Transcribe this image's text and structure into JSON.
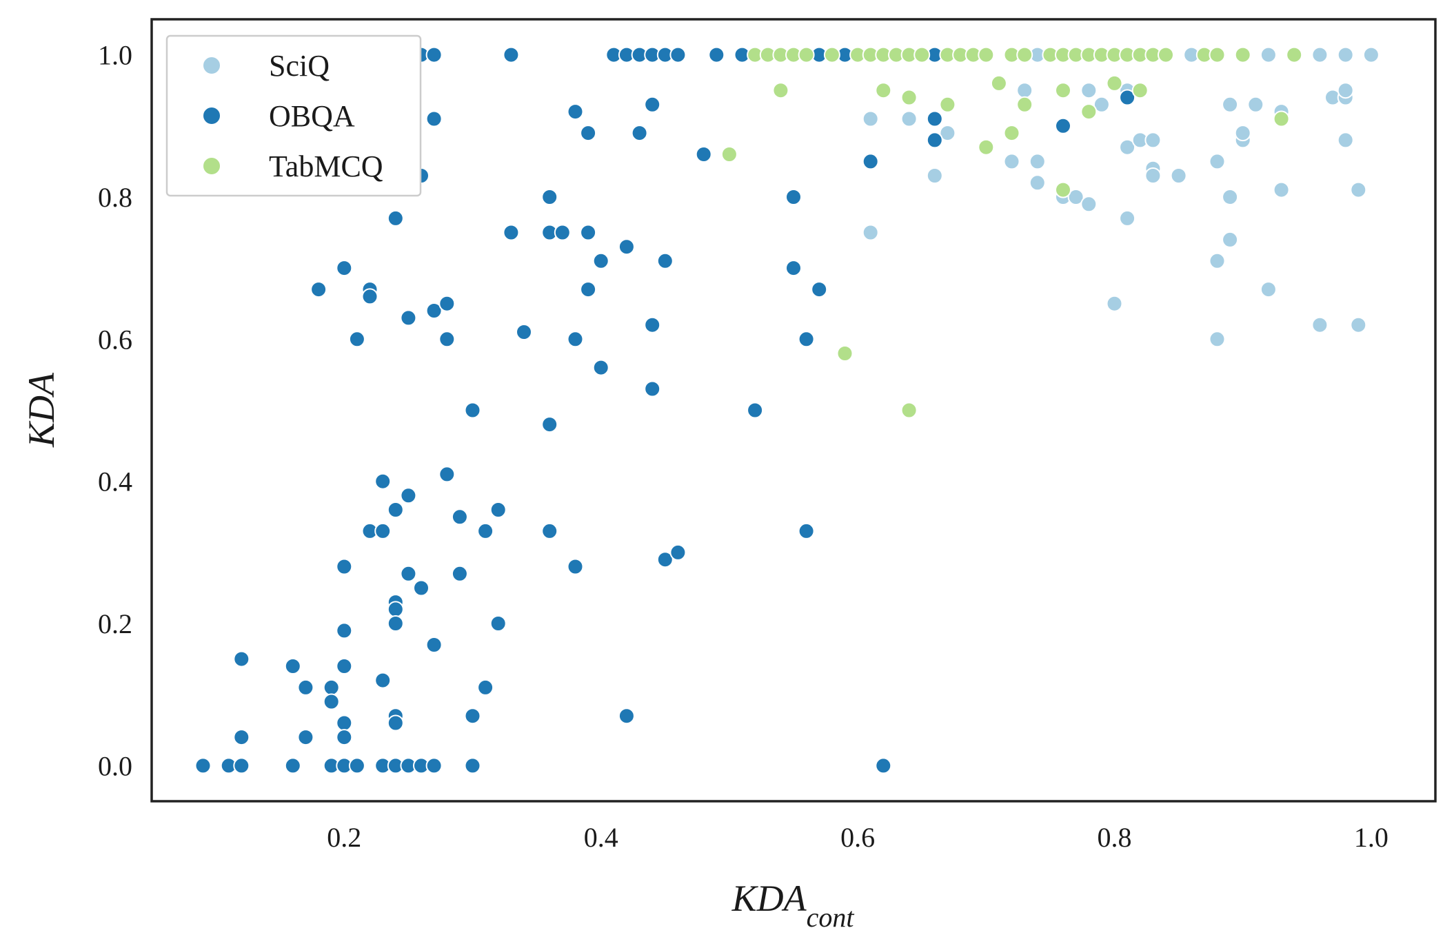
{
  "colors": {
    "sciq": "#a6cee3",
    "obqa": "#1f78b4",
    "tabmcq": "#b2df8a",
    "frame": "#222222",
    "marker_edge": "#ffffff"
  },
  "chart_data": {
    "type": "scatter",
    "title": "",
    "xlabel_main": "KDA",
    "xlabel_sub": "cont",
    "ylabel": "KDA",
    "xlim": [
      0.05,
      1.05
    ],
    "ylim": [
      -0.05,
      1.05
    ],
    "x_ticks": [
      0.2,
      0.4,
      0.6,
      0.8,
      1.0
    ],
    "x_tick_labels": [
      "0.2",
      "0.4",
      "0.6",
      "0.8",
      "1.0"
    ],
    "y_ticks": [
      0.0,
      0.2,
      0.4,
      0.6,
      0.8,
      1.0
    ],
    "y_tick_labels": [
      "0.0",
      "0.2",
      "0.4",
      "0.6",
      "0.8",
      "1.0"
    ],
    "grid": false,
    "legend_position": "top-left",
    "series": [
      {
        "name": "SciQ",
        "color_key": "sciq",
        "points": [
          [
            0.52,
            1.0
          ],
          [
            0.54,
            1.0
          ],
          [
            0.56,
            1.0
          ],
          [
            0.58,
            1.0
          ],
          [
            0.6,
            1.0
          ],
          [
            0.62,
            1.0
          ],
          [
            0.64,
            1.0
          ],
          [
            0.66,
            1.0
          ],
          [
            0.68,
            1.0
          ],
          [
            0.7,
            1.0
          ],
          [
            0.72,
            1.0
          ],
          [
            0.74,
            1.0
          ],
          [
            0.76,
            1.0
          ],
          [
            0.78,
            1.0
          ],
          [
            0.8,
            1.0
          ],
          [
            0.82,
            1.0
          ],
          [
            0.84,
            1.0
          ],
          [
            0.86,
            1.0
          ],
          [
            0.88,
            1.0
          ],
          [
            0.9,
            1.0
          ],
          [
            0.92,
            1.0
          ],
          [
            0.94,
            1.0
          ],
          [
            0.96,
            1.0
          ],
          [
            0.98,
            1.0
          ],
          [
            1.0,
            1.0
          ],
          [
            0.61,
            0.91
          ],
          [
            0.61,
            0.75
          ],
          [
            0.64,
            0.91
          ],
          [
            0.66,
            0.83
          ],
          [
            0.67,
            0.89
          ],
          [
            0.72,
            0.85
          ],
          [
            0.73,
            0.95
          ],
          [
            0.74,
            0.85
          ],
          [
            0.74,
            0.82
          ],
          [
            0.76,
            0.8
          ],
          [
            0.77,
            0.8
          ],
          [
            0.78,
            0.79
          ],
          [
            0.78,
            0.95
          ],
          [
            0.79,
            0.93
          ],
          [
            0.8,
            0.65
          ],
          [
            0.81,
            0.95
          ],
          [
            0.81,
            0.87
          ],
          [
            0.81,
            0.77
          ],
          [
            0.82,
            0.88
          ],
          [
            0.83,
            0.88
          ],
          [
            0.83,
            0.84
          ],
          [
            0.83,
            0.83
          ],
          [
            0.85,
            0.83
          ],
          [
            0.88,
            0.85
          ],
          [
            0.88,
            0.71
          ],
          [
            0.88,
            0.6
          ],
          [
            0.89,
            0.93
          ],
          [
            0.89,
            0.8
          ],
          [
            0.89,
            0.74
          ],
          [
            0.9,
            0.88
          ],
          [
            0.9,
            0.89
          ],
          [
            0.91,
            0.93
          ],
          [
            0.92,
            0.67
          ],
          [
            0.93,
            0.92
          ],
          [
            0.93,
            0.81
          ],
          [
            0.96,
            0.62
          ],
          [
            0.97,
            0.94
          ],
          [
            0.98,
            0.94
          ],
          [
            0.98,
            0.95
          ],
          [
            0.98,
            0.88
          ],
          [
            0.99,
            0.81
          ],
          [
            0.99,
            0.62
          ]
        ]
      },
      {
        "name": "OBQA",
        "color_key": "obqa",
        "points": [
          [
            0.09,
            0.0
          ],
          [
            0.11,
            0.0
          ],
          [
            0.12,
            0.0
          ],
          [
            0.16,
            0.0
          ],
          [
            0.19,
            0.0
          ],
          [
            0.2,
            0.0
          ],
          [
            0.21,
            0.0
          ],
          [
            0.23,
            0.0
          ],
          [
            0.24,
            0.0
          ],
          [
            0.25,
            0.0
          ],
          [
            0.26,
            0.0
          ],
          [
            0.27,
            0.0
          ],
          [
            0.3,
            0.0
          ],
          [
            0.62,
            0.0
          ],
          [
            0.12,
            0.04
          ],
          [
            0.12,
            0.15
          ],
          [
            0.16,
            0.14
          ],
          [
            0.17,
            0.11
          ],
          [
            0.17,
            0.04
          ],
          [
            0.19,
            0.11
          ],
          [
            0.19,
            0.09
          ],
          [
            0.2,
            0.14
          ],
          [
            0.2,
            0.19
          ],
          [
            0.2,
            0.06
          ],
          [
            0.2,
            0.04
          ],
          [
            0.2,
            0.28
          ],
          [
            0.22,
            0.33
          ],
          [
            0.23,
            0.33
          ],
          [
            0.23,
            0.4
          ],
          [
            0.23,
            0.12
          ],
          [
            0.24,
            0.36
          ],
          [
            0.24,
            0.23
          ],
          [
            0.24,
            0.22
          ],
          [
            0.24,
            0.2
          ],
          [
            0.24,
            0.07
          ],
          [
            0.24,
            0.06
          ],
          [
            0.25,
            0.38
          ],
          [
            0.25,
            0.27
          ],
          [
            0.26,
            0.25
          ],
          [
            0.27,
            0.17
          ],
          [
            0.28,
            0.41
          ],
          [
            0.29,
            0.35
          ],
          [
            0.29,
            0.27
          ],
          [
            0.3,
            0.07
          ],
          [
            0.31,
            0.33
          ],
          [
            0.31,
            0.11
          ],
          [
            0.32,
            0.36
          ],
          [
            0.32,
            0.2
          ],
          [
            0.36,
            0.33
          ],
          [
            0.38,
            0.28
          ],
          [
            0.42,
            0.07
          ],
          [
            0.45,
            0.29
          ],
          [
            0.46,
            0.3
          ],
          [
            0.56,
            0.33
          ],
          [
            0.18,
            0.67
          ],
          [
            0.2,
            0.7
          ],
          [
            0.21,
            0.6
          ],
          [
            0.22,
            0.67
          ],
          [
            0.22,
            0.66
          ],
          [
            0.25,
            0.63
          ],
          [
            0.27,
            0.64
          ],
          [
            0.28,
            0.65
          ],
          [
            0.28,
            0.6
          ],
          [
            0.3,
            0.5
          ],
          [
            0.34,
            0.61
          ],
          [
            0.36,
            0.48
          ],
          [
            0.38,
            0.6
          ],
          [
            0.39,
            0.67
          ],
          [
            0.4,
            0.56
          ],
          [
            0.44,
            0.62
          ],
          [
            0.44,
            0.53
          ],
          [
            0.52,
            0.5
          ],
          [
            0.55,
            0.7
          ],
          [
            0.56,
            0.6
          ],
          [
            0.57,
            0.67
          ],
          [
            0.24,
            0.77
          ],
          [
            0.26,
            0.83
          ],
          [
            0.27,
            0.91
          ],
          [
            0.33,
            0.75
          ],
          [
            0.36,
            0.8
          ],
          [
            0.36,
            0.75
          ],
          [
            0.37,
            0.75
          ],
          [
            0.38,
            0.92
          ],
          [
            0.39,
            0.89
          ],
          [
            0.39,
            0.75
          ],
          [
            0.4,
            0.71
          ],
          [
            0.42,
            0.73
          ],
          [
            0.43,
            0.89
          ],
          [
            0.44,
            0.93
          ],
          [
            0.45,
            0.71
          ],
          [
            0.48,
            0.86
          ],
          [
            0.55,
            0.8
          ],
          [
            0.61,
            0.85
          ],
          [
            0.66,
            0.91
          ],
          [
            0.66,
            0.88
          ],
          [
            0.76,
            0.9
          ],
          [
            0.81,
            0.94
          ],
          [
            0.26,
            1.0
          ],
          [
            0.27,
            1.0
          ],
          [
            0.33,
            1.0
          ],
          [
            0.41,
            1.0
          ],
          [
            0.42,
            1.0
          ],
          [
            0.43,
            1.0
          ],
          [
            0.44,
            1.0
          ],
          [
            0.45,
            1.0
          ],
          [
            0.46,
            1.0
          ],
          [
            0.49,
            1.0
          ],
          [
            0.51,
            1.0
          ],
          [
            0.53,
            1.0
          ],
          [
            0.57,
            1.0
          ],
          [
            0.59,
            1.0
          ],
          [
            0.66,
            1.0
          ]
        ]
      },
      {
        "name": "TabMCQ",
        "color_key": "tabmcq",
        "points": [
          [
            0.52,
            1.0
          ],
          [
            0.53,
            1.0
          ],
          [
            0.54,
            1.0
          ],
          [
            0.55,
            1.0
          ],
          [
            0.56,
            1.0
          ],
          [
            0.58,
            1.0
          ],
          [
            0.6,
            1.0
          ],
          [
            0.61,
            1.0
          ],
          [
            0.62,
            1.0
          ],
          [
            0.63,
            1.0
          ],
          [
            0.64,
            1.0
          ],
          [
            0.65,
            1.0
          ],
          [
            0.67,
            1.0
          ],
          [
            0.68,
            1.0
          ],
          [
            0.69,
            1.0
          ],
          [
            0.7,
            1.0
          ],
          [
            0.72,
            1.0
          ],
          [
            0.73,
            1.0
          ],
          [
            0.75,
            1.0
          ],
          [
            0.76,
            1.0
          ],
          [
            0.77,
            1.0
          ],
          [
            0.78,
            1.0
          ],
          [
            0.79,
            1.0
          ],
          [
            0.8,
            1.0
          ],
          [
            0.81,
            1.0
          ],
          [
            0.82,
            1.0
          ],
          [
            0.83,
            1.0
          ],
          [
            0.84,
            1.0
          ],
          [
            0.87,
            1.0
          ],
          [
            0.88,
            1.0
          ],
          [
            0.9,
            1.0
          ],
          [
            0.94,
            1.0
          ],
          [
            0.5,
            0.86
          ],
          [
            0.54,
            0.95
          ],
          [
            0.59,
            0.58
          ],
          [
            0.62,
            0.95
          ],
          [
            0.64,
            0.94
          ],
          [
            0.64,
            0.5
          ],
          [
            0.67,
            0.93
          ],
          [
            0.7,
            0.87
          ],
          [
            0.71,
            0.96
          ],
          [
            0.72,
            0.89
          ],
          [
            0.73,
            0.93
          ],
          [
            0.76,
            0.95
          ],
          [
            0.76,
            0.81
          ],
          [
            0.78,
            0.92
          ],
          [
            0.8,
            0.96
          ],
          [
            0.82,
            0.95
          ],
          [
            0.93,
            0.91
          ]
        ]
      }
    ]
  }
}
